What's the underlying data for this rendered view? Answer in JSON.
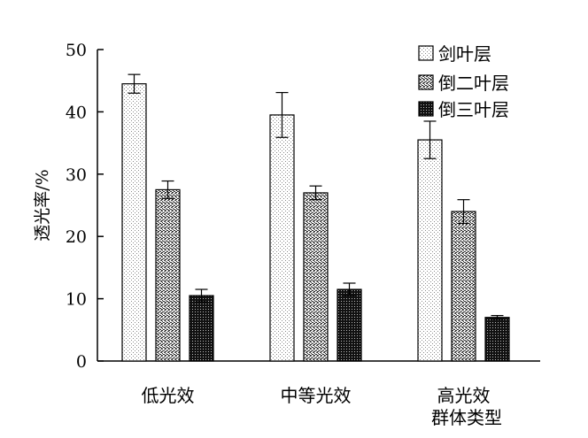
{
  "chart_data": {
    "type": "bar",
    "title": "",
    "xlabel": "群体类型",
    "ylabel": "透光率/%",
    "ylim": [
      0,
      50
    ],
    "yticks": [
      0,
      10,
      20,
      30,
      40,
      50
    ],
    "categories": [
      "低光效",
      "中等光效",
      "高光效"
    ],
    "series": [
      {
        "name": "剑叶层",
        "values": [
          44.5,
          39.5,
          35.5
        ],
        "errors": [
          1.5,
          3.6,
          3.0
        ],
        "pattern": "light"
      },
      {
        "name": "倒二叶层",
        "values": [
          27.5,
          27.0,
          24.0
        ],
        "errors": [
          1.4,
          1.1,
          1.9
        ],
        "pattern": "medium"
      },
      {
        "name": "倒三叶层",
        "values": [
          10.5,
          11.5,
          7.0
        ],
        "errors": [
          1.0,
          1.0,
          0.3
        ],
        "pattern": "dark"
      }
    ],
    "legend_position": "top-right",
    "grid": false
  }
}
